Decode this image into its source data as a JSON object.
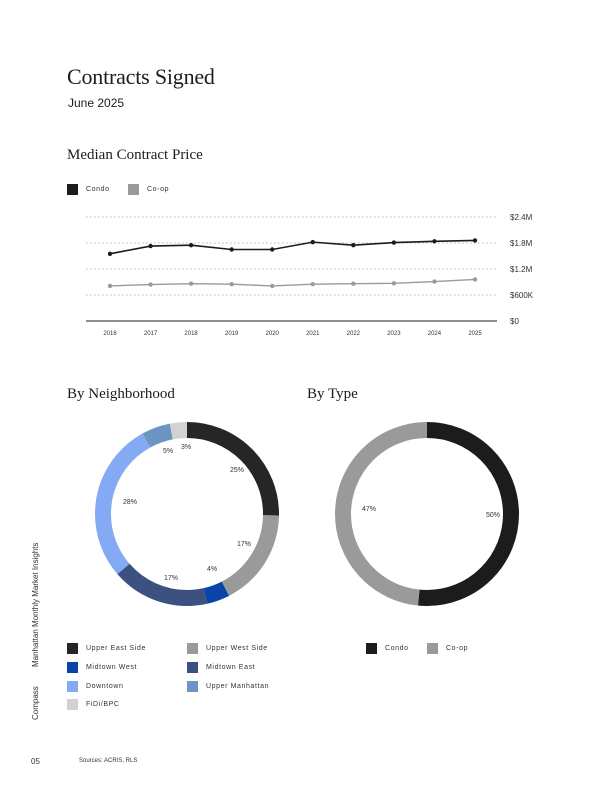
{
  "page": {
    "title": "Contracts Signed",
    "subtitle": "June 2025",
    "side_brand": "Compass",
    "side_label": "Manhattan Monthly Market Insights",
    "page_number": "05",
    "sources": "Sources: ACRIS, RLS"
  },
  "sections": {
    "median_title": "Median Contract Price",
    "neighborhood_title": "By Neighborhood",
    "type_title": "By Type"
  },
  "colors": {
    "condo": "#1c1c1c",
    "coop": "#9a9a9a",
    "upper_east_side": "#262626",
    "upper_west_side": "#9a9a9a",
    "midtown_west": "#0a44a8",
    "midtown_east": "#3b5280",
    "downtown": "#85aaf4",
    "upper_manhattan": "#6c95c4",
    "fidi_bpc": "#d2d2d2"
  },
  "chart_data": [
    {
      "type": "line",
      "title": "Median Contract Price",
      "x": [
        "2016",
        "2017",
        "2018",
        "2019",
        "2020",
        "2021",
        "2022",
        "2023",
        "2024",
        "2025"
      ],
      "series": [
        {
          "name": "Condo",
          "values": [
            1.55,
            1.73,
            1.75,
            1.65,
            1.65,
            1.82,
            1.75,
            1.81,
            1.84,
            1.86
          ]
        },
        {
          "name": "Co-op",
          "values": [
            0.81,
            0.84,
            0.86,
            0.85,
            0.81,
            0.85,
            0.86,
            0.87,
            0.91,
            0.96
          ]
        }
      ],
      "ylim": [
        0,
        2.4
      ],
      "yticks": [
        "$0",
        "$600K",
        "$1.2M",
        "$1.8M",
        "$2.4M"
      ],
      "grid": true,
      "legend": "top-left"
    },
    {
      "type": "pie",
      "title": "By Neighborhood",
      "slices": [
        {
          "label": "Upper East Side",
          "value": 25,
          "display": "25%",
          "color_key": "upper_east_side"
        },
        {
          "label": "Upper West Side",
          "value": 17,
          "display": "17%",
          "color_key": "upper_west_side"
        },
        {
          "label": "Midtown West",
          "value": 4,
          "display": "4%",
          "color_key": "midtown_west"
        },
        {
          "label": "Midtown East",
          "value": 17,
          "display": "17%",
          "color_key": "midtown_east"
        },
        {
          "label": "Downtown",
          "value": 28,
          "display": "28%",
          "color_key": "downtown"
        },
        {
          "label": "Upper Manhattan",
          "value": 5,
          "display": "5%",
          "color_key": "upper_manhattan"
        },
        {
          "label": "FiDi/BPC",
          "value": 3,
          "display": "3%",
          "color_key": "fidi_bpc"
        }
      ],
      "legend": "bottom"
    },
    {
      "type": "pie",
      "title": "By Type",
      "slices": [
        {
          "label": "Condo",
          "value": 50,
          "display": "50%",
          "color_key": "condo"
        },
        {
          "label": "Co-op",
          "value": 47,
          "display": "47%",
          "color_key": "coop"
        }
      ],
      "legend": "bottom"
    }
  ]
}
